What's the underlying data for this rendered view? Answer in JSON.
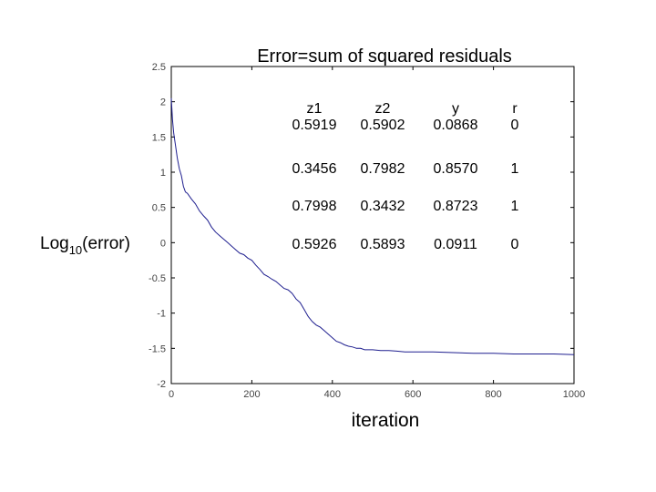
{
  "chart_data": {
    "type": "line",
    "title": "Error=sum of squared residuals",
    "xlabel": "iteration",
    "ylabel_main": "Log",
    "ylabel_sub": "10",
    "ylabel_rest": "(error)",
    "xlim": [
      0,
      1000
    ],
    "ylim": [
      -2,
      2.5
    ],
    "xticks": [
      0,
      200,
      400,
      600,
      800,
      1000
    ],
    "xtick_labels": [
      "0",
      "200",
      "400",
      "600",
      "800",
      "1000"
    ],
    "yticks": [
      2.5,
      2,
      1.5,
      1,
      0.5,
      0,
      -0.5,
      -1,
      -1.5,
      -2
    ],
    "ytick_labels": [
      "2.5",
      "2",
      "1.5",
      "1",
      "0.5",
      "0",
      "-0.5",
      "-1",
      "-1.5",
      "-2"
    ],
    "grid": false,
    "line_color": "#1f1f8f",
    "series": [
      {
        "x": [
          0,
          3,
          6,
          10,
          15,
          20,
          25,
          30,
          35,
          40,
          50,
          60,
          70,
          80,
          90,
          100,
          110,
          120,
          130,
          140,
          150,
          160,
          170,
          180,
          190,
          200,
          210,
          220,
          230,
          240,
          250,
          260,
          270,
          280,
          290,
          300,
          310,
          320,
          330,
          340,
          350,
          360,
          370,
          380,
          390,
          400,
          410,
          420,
          430,
          440,
          450,
          460,
          470,
          480,
          500,
          520,
          540,
          560,
          580,
          600,
          650,
          700,
          750,
          800,
          850,
          900,
          950,
          1000
        ],
        "y": [
          2.05,
          1.75,
          1.55,
          1.4,
          1.2,
          1.05,
          0.95,
          0.8,
          0.72,
          0.7,
          0.62,
          0.55,
          0.45,
          0.38,
          0.32,
          0.22,
          0.15,
          0.1,
          0.05,
          0.0,
          -0.05,
          -0.1,
          -0.15,
          -0.17,
          -0.22,
          -0.25,
          -0.32,
          -0.38,
          -0.45,
          -0.48,
          -0.52,
          -0.55,
          -0.6,
          -0.65,
          -0.67,
          -0.72,
          -0.8,
          -0.85,
          -0.95,
          -1.05,
          -1.12,
          -1.17,
          -1.2,
          -1.25,
          -1.3,
          -1.35,
          -1.4,
          -1.42,
          -1.45,
          -1.47,
          -1.48,
          -1.5,
          -1.5,
          -1.52,
          -1.52,
          -1.53,
          -1.53,
          -1.54,
          -1.55,
          -1.55,
          -1.55,
          -1.56,
          -1.57,
          -1.57,
          -1.58,
          -1.58,
          -1.58,
          -1.59
        ]
      }
    ],
    "table": {
      "headers": [
        "z1",
        "z2",
        "y",
        "r"
      ],
      "rows": [
        [
          "0.5919",
          "0.5902",
          "0.0868",
          "0"
        ],
        [
          "0.3456",
          "0.7982",
          "0.8570",
          "1"
        ],
        [
          "0.7998",
          "0.3432",
          "0.8723",
          "1"
        ],
        [
          "0.5926",
          "0.5893",
          "0.0911",
          "0"
        ]
      ]
    }
  }
}
